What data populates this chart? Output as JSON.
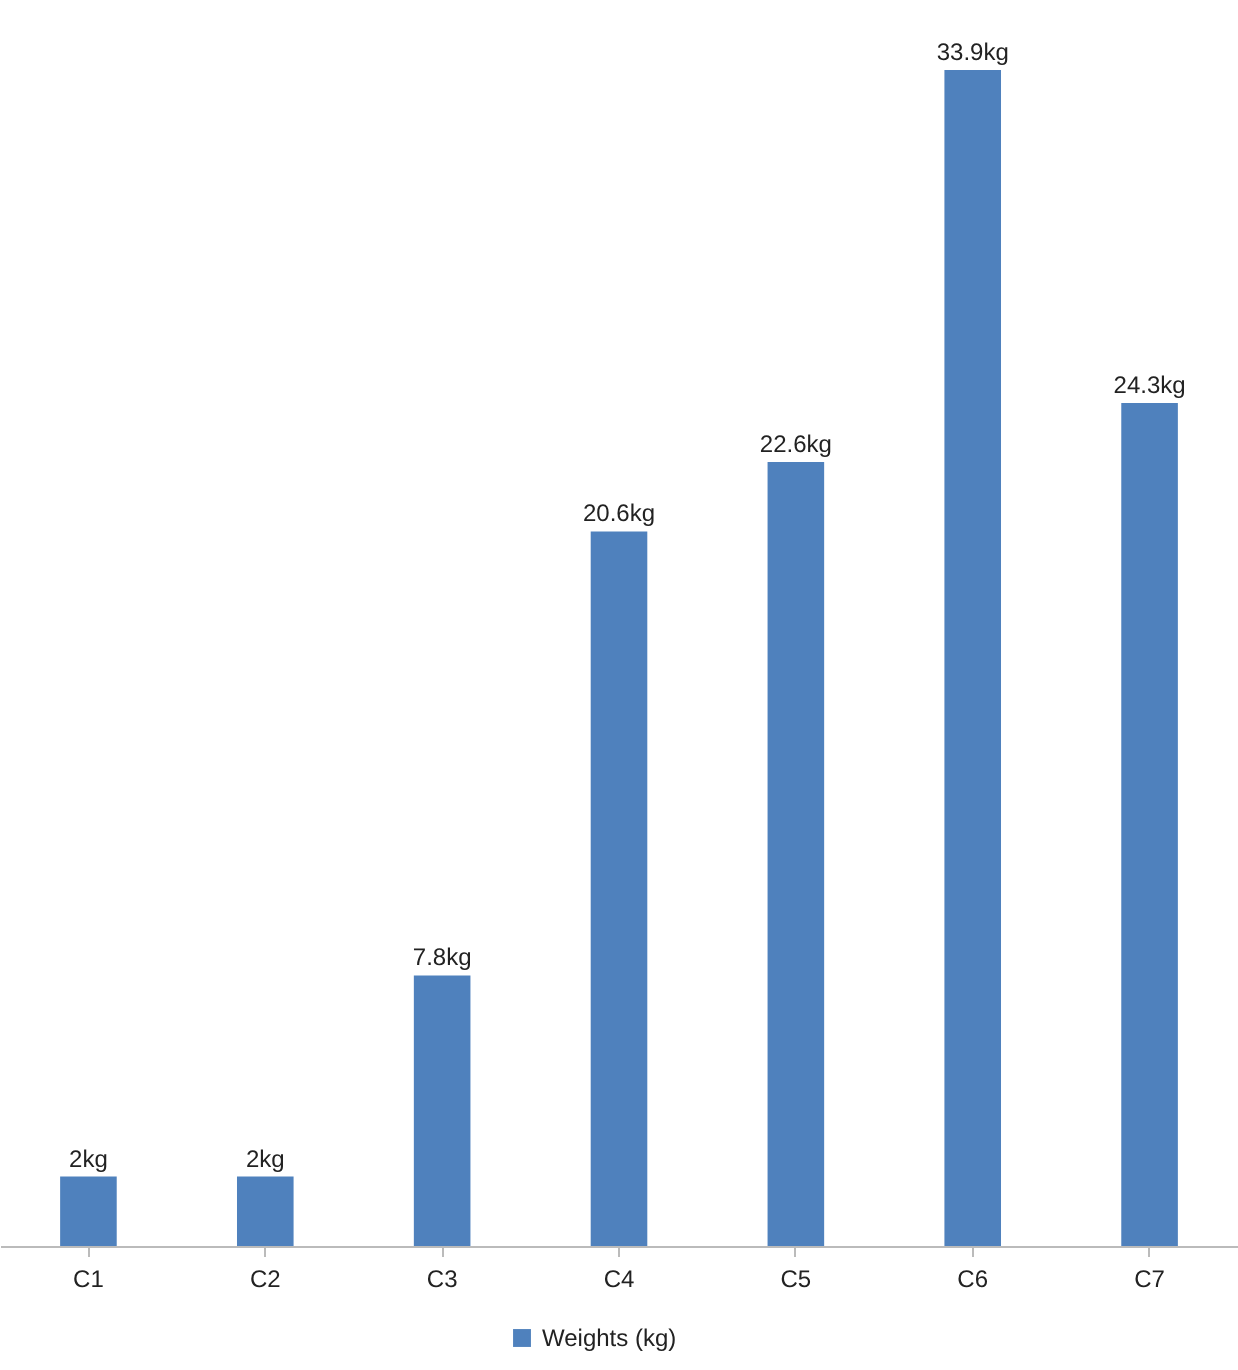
{
  "chart_data": {
    "type": "bar",
    "categories": [
      "C1",
      "C2",
      "C3",
      "C4",
      "C5",
      "C6",
      "C7"
    ],
    "series": [
      {
        "name": "Weights (kg)",
        "color": "#4f81bd",
        "values": [
          2,
          2,
          7.8,
          20.6,
          22.6,
          33.9,
          24.3
        ],
        "value_labels": [
          "2kg",
          "2kg",
          "7.8kg",
          "20.6kg",
          "22.6kg",
          "33.9kg",
          "24.3kg"
        ]
      }
    ],
    "legend": "bottom"
  }
}
